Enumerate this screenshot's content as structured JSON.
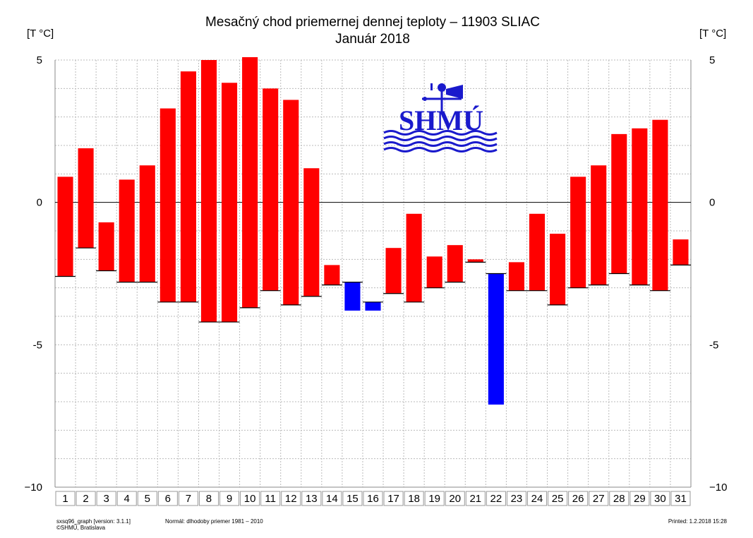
{
  "chart_data": {
    "type": "bar",
    "title": "Mesačný chod priemernej dennej teploty – 11903 SLIAC",
    "subtitle": "Január 2018",
    "ylabel_left": "[T °C]",
    "ylabel_right": "[T °C]",
    "ylim": [
      -10,
      5
    ],
    "yticks": [
      5,
      0,
      -5,
      -10
    ],
    "ytick_labels": [
      "5",
      "0",
      "-5",
      "−10"
    ],
    "grid": true,
    "categories": [
      "1",
      "2",
      "3",
      "4",
      "5",
      "6",
      "7",
      "8",
      "9",
      "10",
      "11",
      "12",
      "13",
      "14",
      "15",
      "16",
      "17",
      "18",
      "19",
      "20",
      "21",
      "22",
      "23",
      "24",
      "25",
      "26",
      "27",
      "28",
      "29",
      "30",
      "31"
    ],
    "series": [
      {
        "values": [
          0.9,
          1.9,
          -0.7,
          0.8,
          1.3,
          3.3,
          4.6,
          5.0,
          4.2,
          5.1,
          4.0,
          3.6,
          1.2,
          -2.2,
          -3.8,
          -3.8,
          -1.6,
          -0.4,
          -1.9,
          -1.5,
          -2.0,
          -7.1,
          -2.1,
          -0.4,
          -1.1,
          0.9,
          1.3,
          2.4,
          2.6,
          2.9,
          -1.3
        ]
      },
      {
        "values": [
          -2.6,
          -1.6,
          -2.4,
          -2.8,
          -2.8,
          -3.5,
          -3.5,
          -4.2,
          -4.2,
          -3.7,
          -3.1,
          -3.6,
          -3.3,
          -2.9,
          -2.8,
          -3.5,
          -3.2,
          -3.5,
          -3.0,
          -2.8,
          -2.1,
          -2.5,
          -3.1,
          -3.1,
          -3.6,
          -3.0,
          -2.9,
          -2.5,
          -2.9,
          -3.1,
          -2.2
        ]
      }
    ],
    "colors": {
      "above": "#ff0000",
      "below": "#0000ff",
      "grid": "#bbbbbb",
      "zero_line": "#000000"
    }
  },
  "logo": {
    "text": "SHMÚ",
    "color": "#1a1acc"
  },
  "footer": {
    "version": "sxsq96_graph [version: 3.1.1]",
    "copyright": "©SHMÚ, Bratislava",
    "normal": "Normál: dlhodoby priemer 1981 – 2010",
    "printed": "Printed: 1.2.2018  15:28"
  }
}
